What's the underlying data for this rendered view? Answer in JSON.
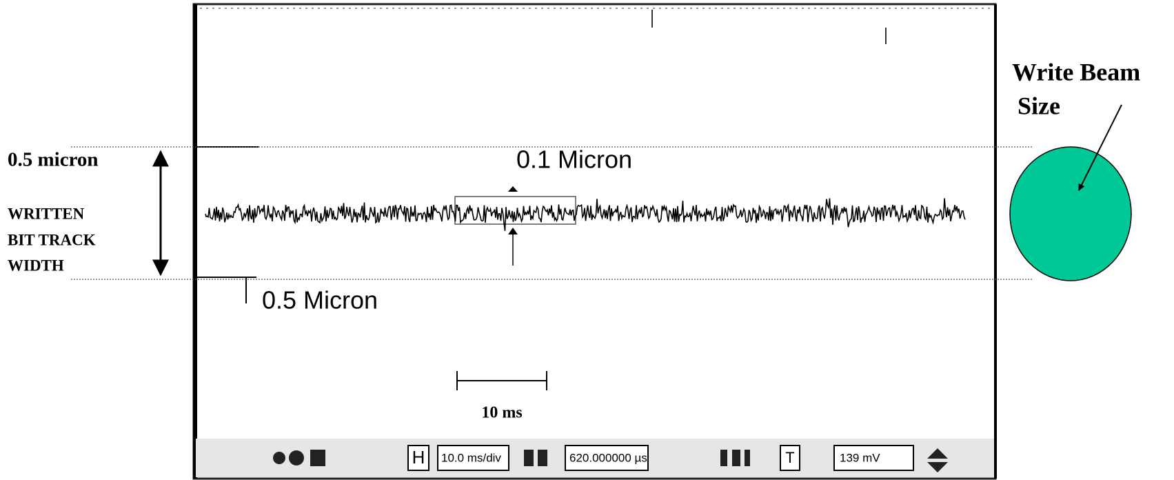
{
  "annotations": {
    "top_width": "0.5 micron",
    "track_label": [
      "WRITTEN",
      "BIT TRACK",
      "WIDTH"
    ],
    "beam_label": [
      "Write Beam",
      "Size"
    ]
  },
  "scope": {
    "inner_label": "0.1 Micron",
    "outer_label": "0.5 Micron",
    "scale_bar": "10 ms"
  },
  "toolbar": {
    "mode": "H",
    "timebase": "10.0 ms/div",
    "position": "620.000000 µs",
    "trigger": "T",
    "level": "139 mV"
  }
}
